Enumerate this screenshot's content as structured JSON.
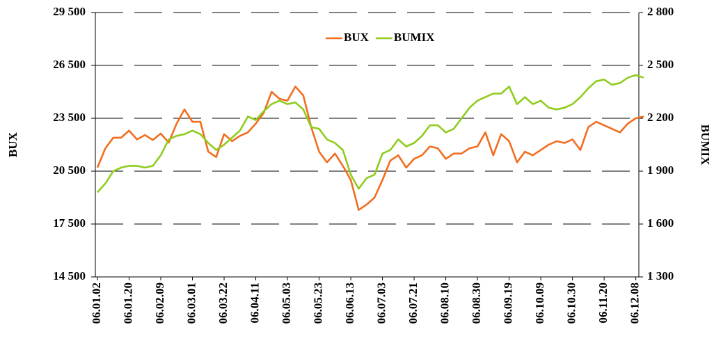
{
  "chart_data": {
    "type": "line",
    "categories": [
      "06.01.02",
      null,
      null,
      null,
      "06.01.20",
      null,
      null,
      null,
      "06.02.09",
      null,
      null,
      null,
      "06.03.01",
      null,
      null,
      null,
      "06.03.22",
      null,
      null,
      null,
      "06.04.11",
      null,
      null,
      null,
      "06.05.03",
      null,
      null,
      null,
      "06.05.23",
      null,
      null,
      null,
      "06.06.13",
      null,
      null,
      null,
      "06.07.03",
      null,
      null,
      null,
      "06.07.21",
      null,
      null,
      null,
      "06.08.10",
      null,
      null,
      null,
      "06.08.30",
      null,
      null,
      null,
      "06.09.19",
      null,
      null,
      null,
      "06.10.09",
      null,
      null,
      null,
      "06.10.30",
      null,
      null,
      null,
      "06.11.20",
      null,
      null,
      null,
      "06.12.08",
      null
    ],
    "series": [
      {
        "name": "BUX",
        "color": "#f26d1f",
        "axis": "y",
        "values": [
          20700,
          21800,
          22400,
          22400,
          22800,
          22300,
          22550,
          22270,
          22630,
          22120,
          23200,
          24000,
          23300,
          23300,
          21600,
          21300,
          22600,
          22200,
          22500,
          22700,
          23200,
          23800,
          25000,
          24600,
          24500,
          25300,
          24800,
          23000,
          21600,
          21000,
          21500,
          20800,
          20000,
          18300,
          18600,
          19000,
          20000,
          21100,
          21400,
          20700,
          21200,
          21400,
          21900,
          21800,
          21200,
          21500,
          21500,
          21800,
          21900,
          22700,
          21400,
          22600,
          22200,
          21000,
          21600,
          21400,
          21700,
          22000,
          22200,
          22100,
          22300,
          21700,
          23000,
          23300,
          23100,
          22900,
          22700,
          23200,
          23500,
          23600
        ]
      },
      {
        "name": "BUMIX",
        "color": "#8fcc1e",
        "axis": "y2",
        "values": [
          1780,
          1830,
          1900,
          1920,
          1930,
          1930,
          1920,
          1930,
          1990,
          2080,
          2100,
          2110,
          2130,
          2110,
          2060,
          2020,
          2050,
          2090,
          2130,
          2210,
          2190,
          2240,
          2280,
          2300,
          2280,
          2290,
          2250,
          2150,
          2140,
          2080,
          2060,
          2020,
          1880,
          1800,
          1860,
          1880,
          2000,
          2020,
          2080,
          2040,
          2060,
          2100,
          2160,
          2160,
          2120,
          2140,
          2200,
          2260,
          2300,
          2320,
          2340,
          2340,
          2380,
          2280,
          2320,
          2280,
          2300,
          2260,
          2250,
          2260,
          2280,
          2320,
          2370,
          2410,
          2420,
          2390,
          2400,
          2430,
          2445,
          2430
        ]
      }
    ],
    "ylabel": "BUX",
    "y2label": "BUMIX",
    "ylim": [
      14500,
      29500
    ],
    "yticks": [
      {
        "value": 14500,
        "label": "14 500"
      },
      {
        "value": 17500,
        "label": "17 500"
      },
      {
        "value": 20500,
        "label": "20 500"
      },
      {
        "value": 23500,
        "label": "23 500"
      },
      {
        "value": 26500,
        "label": "26 500"
      },
      {
        "value": 29500,
        "label": "29 500"
      }
    ],
    "y2lim": [
      1300,
      2800
    ],
    "y2ticks": [
      {
        "value": 1300,
        "label": "1 300"
      },
      {
        "value": 1600,
        "label": "1 600"
      },
      {
        "value": 1900,
        "label": "1 900"
      },
      {
        "value": 2200,
        "label": "2 200"
      },
      {
        "value": 2500,
        "label": "2 500"
      },
      {
        "value": 2800,
        "label": "2 800"
      }
    ],
    "grid": true,
    "legend": "top"
  }
}
